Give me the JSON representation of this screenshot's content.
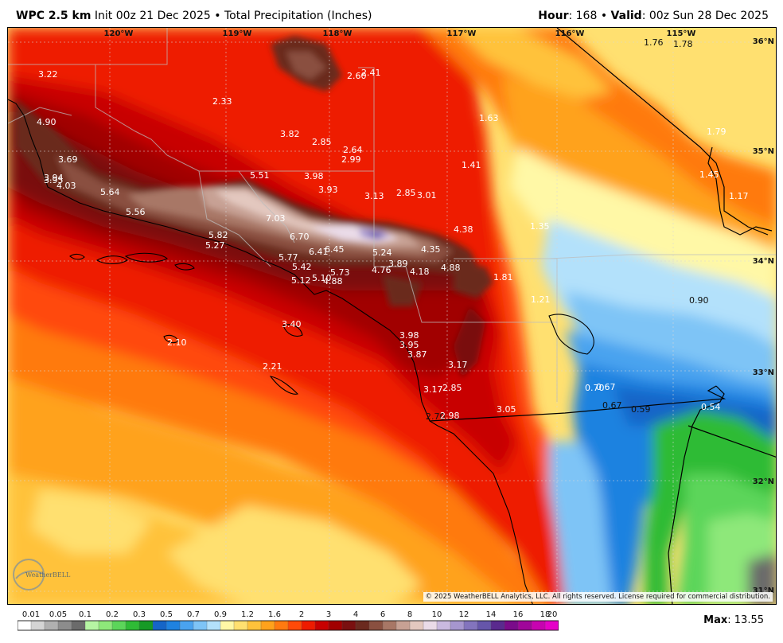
{
  "header": {
    "model": "WPC 2.5 km",
    "init": "Init 00z 21 Dec 2025",
    "separator": "•",
    "product": "Total Precipitation (Inches)",
    "hour_label": "Hour",
    "hour_value": ": 168",
    "valid_label": "Valid",
    "valid_value": ": 00z Sun 28 Dec 2025"
  },
  "lon_labels": [
    "120°W",
    "119°W",
    "118°W",
    "117°W",
    "116°W",
    "115°W"
  ],
  "lat_labels": [
    "36°N",
    "35°N",
    "34°N",
    "33°N",
    "32°N",
    "31°N"
  ],
  "point_values": [
    "3.22",
    "2.33",
    "2.60",
    "2.41",
    "1.76",
    "1.78",
    "4.90",
    "1.63",
    "3.82",
    "2.85",
    "2.64",
    "2.99",
    "1.79",
    "3.69",
    "3.94",
    "3.95",
    "4.03",
    "1.41",
    "1.45",
    "5.51",
    "3.98",
    "3.93",
    "5.64",
    "3.13",
    "2.85",
    "3.01",
    "1.17",
    "5.56",
    "7.03",
    "1.35",
    "4.38",
    "5.82",
    "6.70",
    "5.27",
    "4.35",
    "6.41",
    "6.45",
    "5.24",
    "5.77",
    "3.89",
    "4.88",
    "5.42",
    "4.76",
    "4.18",
    "5.73",
    "5.12",
    "5.10",
    "4.88",
    "1.81",
    "1.21",
    "0.90",
    "3.40",
    "3.98",
    "2.10",
    "3.95",
    "3.87",
    "3.17",
    "2.21",
    "0.70",
    "0.67",
    "3.17",
    "2.85",
    "2.70",
    "2.98",
    "3.05",
    "0.67",
    "0.59",
    "0.54"
  ],
  "copyright": "© 2025 WeatherBELL Analytics, LLC. All rights reserved. License required for commercial distribution.",
  "logo_text": "WeatherBELL",
  "legend": {
    "labels": [
      "0.01",
      "0.05",
      "0.1",
      "0.2",
      "0.3",
      "0.5",
      "0.7",
      "0.9",
      "1.2",
      "1.6",
      "2",
      "3",
      "4",
      "6",
      "8",
      "10",
      "12",
      "14",
      "16",
      "18",
      "20"
    ],
    "colors": [
      "#ffffff",
      "#d4d4d4",
      "#b0b0b0",
      "#8c8c8c",
      "#6b6b6b",
      "#b6f5a3",
      "#8ee87a",
      "#5cd55a",
      "#2fbb36",
      "#169a26",
      "#1565c8",
      "#1f82e0",
      "#4aa3ef",
      "#7ec4f6",
      "#b3e1fb",
      "#fff8a6",
      "#ffe070",
      "#ffc23b",
      "#ffa21c",
      "#ff7a10",
      "#ff4a08",
      "#ee1b00",
      "#c80000",
      "#a10000",
      "#7a1010",
      "#6b2a1f",
      "#8a5040",
      "#a87766",
      "#c7a194",
      "#e3c8bf",
      "#eadbe8",
      "#c9b9df",
      "#a696cf",
      "#8374bd",
      "#6656aa",
      "#5a2a8e",
      "#7a0b8a",
      "#a0069a",
      "#c703b0",
      "#e500c8"
    ]
  },
  "max_label": "Max",
  "max_value": ": 13.55"
}
